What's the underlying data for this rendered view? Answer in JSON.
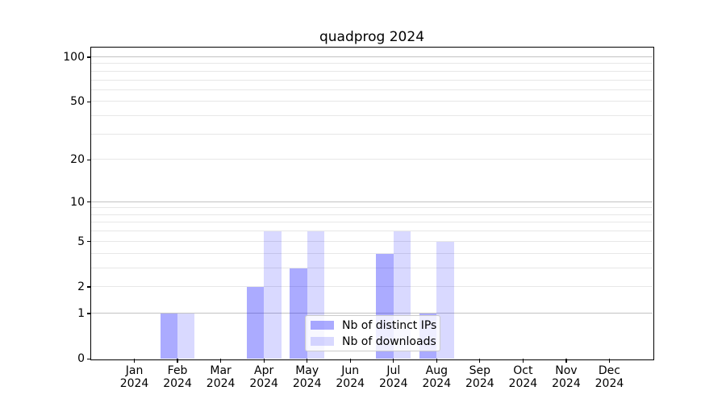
{
  "title": "quadprog 2024",
  "chart_data": {
    "type": "bar",
    "title": "quadprog 2024",
    "categories": [
      "Jan",
      "Feb",
      "Mar",
      "Apr",
      "May",
      "Jun",
      "Jul",
      "Aug",
      "Sep",
      "Oct",
      "Nov",
      "Dec"
    ],
    "year_label": "2024",
    "series": [
      {
        "name": "Nb of distinct IPs",
        "color": "rgba(0,0,255,0.33)",
        "values": [
          0,
          1,
          0,
          2,
          3,
          0,
          4,
          1,
          0,
          0,
          0,
          0
        ]
      },
      {
        "name": "Nb of downloads",
        "color": "rgba(0,0,255,0.15)",
        "values": [
          0,
          1,
          0,
          6,
          6,
          0,
          6,
          5,
          0,
          0,
          0,
          0
        ]
      }
    ],
    "y_axis": {
      "scale": "log1p",
      "min": 0,
      "max": 116,
      "major_ticks": [
        0,
        1,
        2,
        5,
        10,
        20,
        50,
        100
      ],
      "strong_gridlines": [
        1,
        10,
        100
      ],
      "minor_gridlines": [
        2,
        3,
        4,
        5,
        6,
        7,
        8,
        9,
        20,
        30,
        40,
        50,
        60,
        70,
        80,
        90
      ]
    },
    "xlabel": "",
    "ylabel": "",
    "grid": true,
    "legend_position": "lower center",
    "style": {
      "strong_grid_color": "#c3c3c3",
      "minor_grid_color": "#e7e7e7",
      "spine_color": "#000000",
      "background": "#ffffff"
    }
  }
}
